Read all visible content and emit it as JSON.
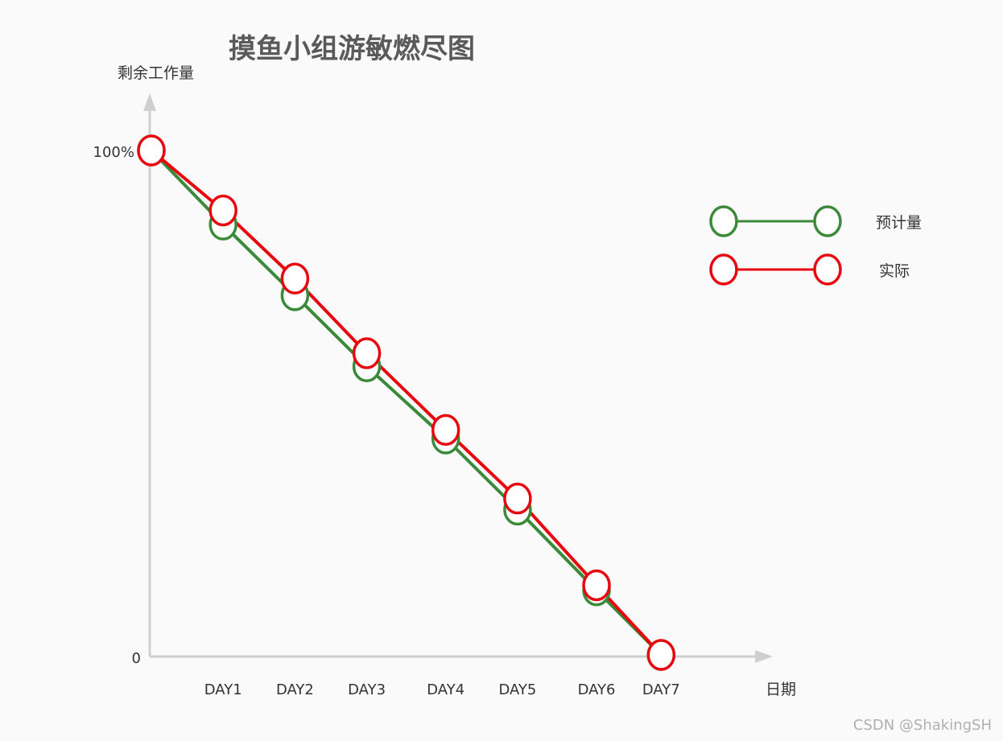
{
  "chart_data": {
    "type": "line",
    "title": "摸鱼小组游敏燃尽图",
    "ylabel": "剩余工作量",
    "xlabel": "日期",
    "y_ticks": [
      "100%",
      "0"
    ],
    "ylim": [
      0,
      100
    ],
    "categories": [
      "DAY1",
      "DAY2",
      "DAY3",
      "DAY4",
      "DAY5",
      "DAY6",
      "DAY7"
    ],
    "series": [
      {
        "name": "预计量",
        "color": "#3a8a3a",
        "points": [
          {
            "day": 0.0,
            "value": 100
          },
          {
            "day": 1.0,
            "value": 85.3
          },
          {
            "day": 2.0,
            "value": 71.3
          },
          {
            "day": 3.0,
            "value": 57.2
          },
          {
            "day": 4.1,
            "value": 42.9
          },
          {
            "day": 5.1,
            "value": 28.8
          },
          {
            "day": 6.2,
            "value": 12.8
          },
          {
            "day": 7.1,
            "value": 0
          }
        ]
      },
      {
        "name": "实际",
        "color": "#e8070f",
        "points": [
          {
            "day": 0.0,
            "value": 100
          },
          {
            "day": 1.0,
            "value": 88.1
          },
          {
            "day": 2.0,
            "value": 74.6
          },
          {
            "day": 3.0,
            "value": 59.8
          },
          {
            "day": 4.1,
            "value": 44.6
          },
          {
            "day": 5.1,
            "value": 31.0
          },
          {
            "day": 6.2,
            "value": 13.8
          },
          {
            "day": 7.1,
            "value": 0
          }
        ]
      }
    ],
    "legend": "right",
    "grid": false
  },
  "watermark": "CSDN @ShakingSH"
}
